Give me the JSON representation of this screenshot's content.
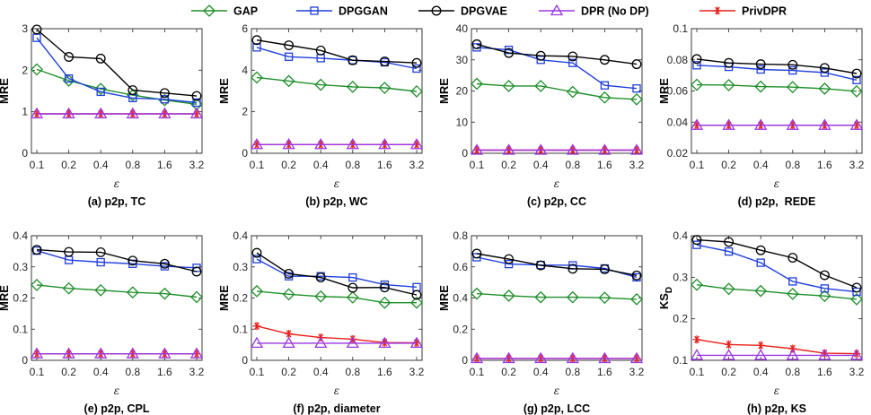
{
  "legend": [
    {
      "name": "GAP",
      "color": "#1f8f2a",
      "marker": "diamond"
    },
    {
      "name": "DPGGAN",
      "color": "#1f3fdc",
      "marker": "square"
    },
    {
      "name": "DPGVAE",
      "color": "#000000",
      "marker": "circle"
    },
    {
      "name": "DPR (No DP)",
      "color": "#9a36e0",
      "marker": "triangle"
    },
    {
      "name": "PrivDPR",
      "color": "#e8211b",
      "marker": "star"
    }
  ],
  "chart_data": [
    {
      "type": "line",
      "caption": "(a) p2p, TC",
      "xlabel": "ε",
      "ylabel": "MRE",
      "categories": [
        "0.1",
        "0.2",
        "0.4",
        "0.8",
        "1.6",
        "3.2"
      ],
      "ylim": [
        0,
        3
      ],
      "yticks": [
        "0",
        "1",
        "2",
        "3"
      ],
      "series": [
        {
          "name": "GAP",
          "values": [
            2.02,
            1.75,
            1.55,
            1.4,
            1.28,
            1.18
          ]
        },
        {
          "name": "DPGGAN",
          "values": [
            2.78,
            1.8,
            1.48,
            1.33,
            1.3,
            1.22
          ]
        },
        {
          "name": "DPGVAE",
          "values": [
            2.98,
            2.32,
            2.28,
            1.52,
            1.45,
            1.38
          ]
        },
        {
          "name": "DPR (No DP)",
          "values": [
            0.95,
            0.95,
            0.95,
            0.95,
            0.95,
            0.95
          ]
        },
        {
          "name": "PrivDPR",
          "values": [
            0.95,
            0.95,
            0.95,
            0.95,
            0.95,
            0.95
          ]
        }
      ]
    },
    {
      "type": "line",
      "caption": "(b) p2p, WC",
      "xlabel": "ε",
      "ylabel": "MRE",
      "categories": [
        "0.1",
        "0.2",
        "0.4",
        "0.8",
        "1.6",
        "3.2"
      ],
      "ylim": [
        0,
        6
      ],
      "yticks": [
        "0",
        "2",
        "4",
        "6"
      ],
      "series": [
        {
          "name": "GAP",
          "values": [
            3.65,
            3.48,
            3.3,
            3.2,
            3.15,
            2.98
          ]
        },
        {
          "name": "DPGGAN",
          "values": [
            5.1,
            4.65,
            4.58,
            4.48,
            4.38,
            4.08
          ]
        },
        {
          "name": "DPGVAE",
          "values": [
            5.45,
            5.2,
            4.95,
            4.48,
            4.42,
            4.35
          ]
        },
        {
          "name": "DPR (No DP)",
          "values": [
            0.42,
            0.42,
            0.42,
            0.42,
            0.42,
            0.42
          ]
        },
        {
          "name": "PrivDPR",
          "values": [
            0.42,
            0.42,
            0.42,
            0.42,
            0.42,
            0.42
          ]
        }
      ]
    },
    {
      "type": "line",
      "caption": "(c) p2p, CC",
      "xlabel": "ε",
      "ylabel": "MRE",
      "categories": [
        "0.1",
        "0.2",
        "0.4",
        "0.8",
        "1.6",
        "3.2"
      ],
      "ylim": [
        0,
        40
      ],
      "yticks": [
        "0",
        "10",
        "20",
        "30",
        "40"
      ],
      "series": [
        {
          "name": "GAP",
          "values": [
            22.3,
            21.6,
            21.6,
            19.7,
            17.9,
            17.3
          ]
        },
        {
          "name": "DPGGAN",
          "values": [
            34.0,
            33.2,
            30.0,
            29.0,
            21.8,
            20.8
          ]
        },
        {
          "name": "DPGVAE",
          "values": [
            35.0,
            32.2,
            31.3,
            31.1,
            30.0,
            28.6
          ]
        },
        {
          "name": "DPR (No DP)",
          "values": [
            1.0,
            1.0,
            1.0,
            1.0,
            1.0,
            1.0
          ]
        },
        {
          "name": "PrivDPR",
          "values": [
            1.0,
            1.0,
            1.0,
            1.0,
            1.0,
            1.0
          ]
        }
      ]
    },
    {
      "type": "line",
      "caption": "(d) p2p,  REDE",
      "xlabel": "ε",
      "ylabel": "MRE",
      "categories": [
        "0.1",
        "0.2",
        "0.4",
        "0.8",
        "1.6",
        "3.2"
      ],
      "ylim": [
        0.02,
        0.1
      ],
      "yticks": [
        "0.02",
        "0.04",
        "0.06",
        "0.08",
        "0.1"
      ],
      "series": [
        {
          "name": "GAP",
          "values": [
            0.064,
            0.0638,
            0.0628,
            0.0625,
            0.0615,
            0.0598
          ]
        },
        {
          "name": "DPGGAN",
          "values": [
            0.0765,
            0.0755,
            0.0738,
            0.0732,
            0.0718,
            0.067
          ]
        },
        {
          "name": "DPGVAE",
          "values": [
            0.0805,
            0.078,
            0.0772,
            0.0768,
            0.0748,
            0.0712
          ]
        },
        {
          "name": "DPR (No DP)",
          "values": [
            0.038,
            0.038,
            0.038,
            0.038,
            0.038,
            0.038
          ]
        },
        {
          "name": "PrivDPR",
          "values": [
            0.038,
            0.038,
            0.038,
            0.038,
            0.038,
            0.038
          ]
        }
      ]
    },
    {
      "type": "line",
      "caption": "(e) p2p, CPL",
      "xlabel": "ε",
      "ylabel": "MRE",
      "categories": [
        "0.1",
        "0.2",
        "0.4",
        "0.8",
        "1.6",
        "3.2"
      ],
      "ylim": [
        0,
        0.4
      ],
      "yticks": [
        "0",
        "0.1",
        "0.2",
        "0.3",
        "0.4"
      ],
      "series": [
        {
          "name": "GAP",
          "values": [
            0.242,
            0.231,
            0.225,
            0.218,
            0.214,
            0.203
          ]
        },
        {
          "name": "DPGGAN",
          "values": [
            0.352,
            0.322,
            0.315,
            0.31,
            0.302,
            0.297
          ]
        },
        {
          "name": "DPGVAE",
          "values": [
            0.355,
            0.348,
            0.347,
            0.32,
            0.31,
            0.285
          ]
        },
        {
          "name": "DPR (No DP)",
          "values": [
            0.021,
            0.021,
            0.021,
            0.021,
            0.021,
            0.021
          ]
        },
        {
          "name": "PrivDPR",
          "values": [
            0.021,
            0.021,
            0.021,
            0.021,
            0.021,
            0.021
          ]
        }
      ]
    },
    {
      "type": "line",
      "caption": "(f) p2p, diameter",
      "xlabel": "ε",
      "ylabel": "MRE",
      "categories": [
        "0.1",
        "0.2",
        "0.4",
        "0.8",
        "1.6",
        "3.2"
      ],
      "ylim": [
        0,
        0.4
      ],
      "yticks": [
        "0",
        "0.1",
        "0.2",
        "0.3",
        "0.4"
      ],
      "series": [
        {
          "name": "GAP",
          "values": [
            0.222,
            0.212,
            0.205,
            0.202,
            0.185,
            0.185
          ]
        },
        {
          "name": "DPGGAN",
          "values": [
            0.325,
            0.27,
            0.27,
            0.266,
            0.243,
            0.235
          ]
        },
        {
          "name": "DPGVAE",
          "values": [
            0.345,
            0.278,
            0.266,
            0.233,
            0.234,
            0.21
          ]
        },
        {
          "name": "DPR (No DP)",
          "values": [
            0.055,
            0.055,
            0.055,
            0.055,
            0.055,
            0.055
          ]
        },
        {
          "name": "PrivDPR",
          "values": [
            0.11,
            0.085,
            0.073,
            0.068,
            0.057,
            0.056
          ]
        }
      ]
    },
    {
      "type": "line",
      "caption": "(g) p2p, LCC",
      "xlabel": "ε",
      "ylabel": "MRE",
      "categories": [
        "0.1",
        "0.2",
        "0.4",
        "0.8",
        "1.6",
        "3.2"
      ],
      "ylim": [
        0,
        0.8
      ],
      "yticks": [
        "0",
        "0.2",
        "0.4",
        "0.6",
        "0.8"
      ],
      "series": [
        {
          "name": "GAP",
          "values": [
            0.428,
            0.415,
            0.405,
            0.405,
            0.402,
            0.392
          ]
        },
        {
          "name": "DPGGAN",
          "values": [
            0.662,
            0.618,
            0.612,
            0.61,
            0.59,
            0.533
          ]
        },
        {
          "name": "DPGVAE",
          "values": [
            0.685,
            0.65,
            0.61,
            0.588,
            0.585,
            0.545
          ]
        },
        {
          "name": "DPR (No DP)",
          "values": [
            0.012,
            0.012,
            0.012,
            0.012,
            0.012,
            0.012
          ]
        },
        {
          "name": "PrivDPR",
          "values": [
            0.012,
            0.012,
            0.012,
            0.012,
            0.012,
            0.012
          ]
        }
      ]
    },
    {
      "type": "line",
      "caption": "(h) p2p, KS",
      "xlabel": "ε",
      "ylabel": "KS",
      "ylabel_sub": "D",
      "categories": [
        "0.1",
        "0.2",
        "0.4",
        "0.8",
        "1.6",
        "3.2"
      ],
      "ylim": [
        0.1,
        0.4
      ],
      "yticks": [
        "0.1",
        "0.2",
        "0.3",
        "0.4"
      ],
      "series": [
        {
          "name": "GAP",
          "values": [
            0.282,
            0.272,
            0.267,
            0.26,
            0.255,
            0.247
          ]
        },
        {
          "name": "DPGGAN",
          "values": [
            0.378,
            0.362,
            0.335,
            0.29,
            0.273,
            0.265
          ]
        },
        {
          "name": "DPGVAE",
          "values": [
            0.39,
            0.385,
            0.365,
            0.347,
            0.305,
            0.275
          ]
        },
        {
          "name": "DPR (No DP)",
          "values": [
            0.112,
            0.112,
            0.112,
            0.112,
            0.112,
            0.112
          ]
        },
        {
          "name": "PrivDPR",
          "values": [
            0.15,
            0.138,
            0.136,
            0.128,
            0.117,
            0.116
          ]
        }
      ]
    }
  ]
}
